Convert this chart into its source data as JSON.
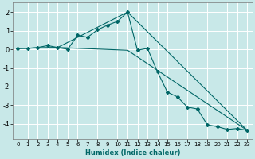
{
  "xlabel": "Humidex (Indice chaleur)",
  "bg_color": "#c8e8e8",
  "grid_color": "#ffffff",
  "line_color": "#006666",
  "xlim": [
    -0.5,
    23.5
  ],
  "ylim": [
    -4.8,
    2.5
  ],
  "x_ticks": [
    0,
    1,
    2,
    3,
    4,
    5,
    6,
    7,
    8,
    9,
    10,
    11,
    12,
    13,
    14,
    15,
    16,
    17,
    18,
    19,
    20,
    21,
    22,
    23
  ],
  "y_ticks": [
    -4,
    -3,
    -2,
    -1,
    0,
    1,
    2
  ],
  "series1_x": [
    0,
    1,
    2,
    3,
    4,
    5,
    6,
    7,
    8,
    9,
    10,
    11,
    12,
    13,
    14,
    15,
    16,
    17,
    18,
    19,
    20,
    21,
    22,
    23
  ],
  "series1_y": [
    0.05,
    0.05,
    0.1,
    0.2,
    0.1,
    0.0,
    0.75,
    0.65,
    1.05,
    1.3,
    1.5,
    2.0,
    -0.05,
    0.05,
    -1.2,
    -2.3,
    -2.55,
    -3.1,
    -3.2,
    -4.05,
    -4.15,
    -4.3,
    -4.25,
    -4.35
  ],
  "series2_x": [
    0,
    4,
    11,
    23
  ],
  "series2_y": [
    0.05,
    0.1,
    2.0,
    -4.35
  ],
  "series3_x": [
    0,
    4,
    11,
    23
  ],
  "series3_y": [
    0.05,
    0.1,
    -0.05,
    -4.35
  ],
  "tick_fontsize": 5,
  "xlabel_fontsize": 6,
  "marker_size": 2,
  "line_width": 0.8
}
